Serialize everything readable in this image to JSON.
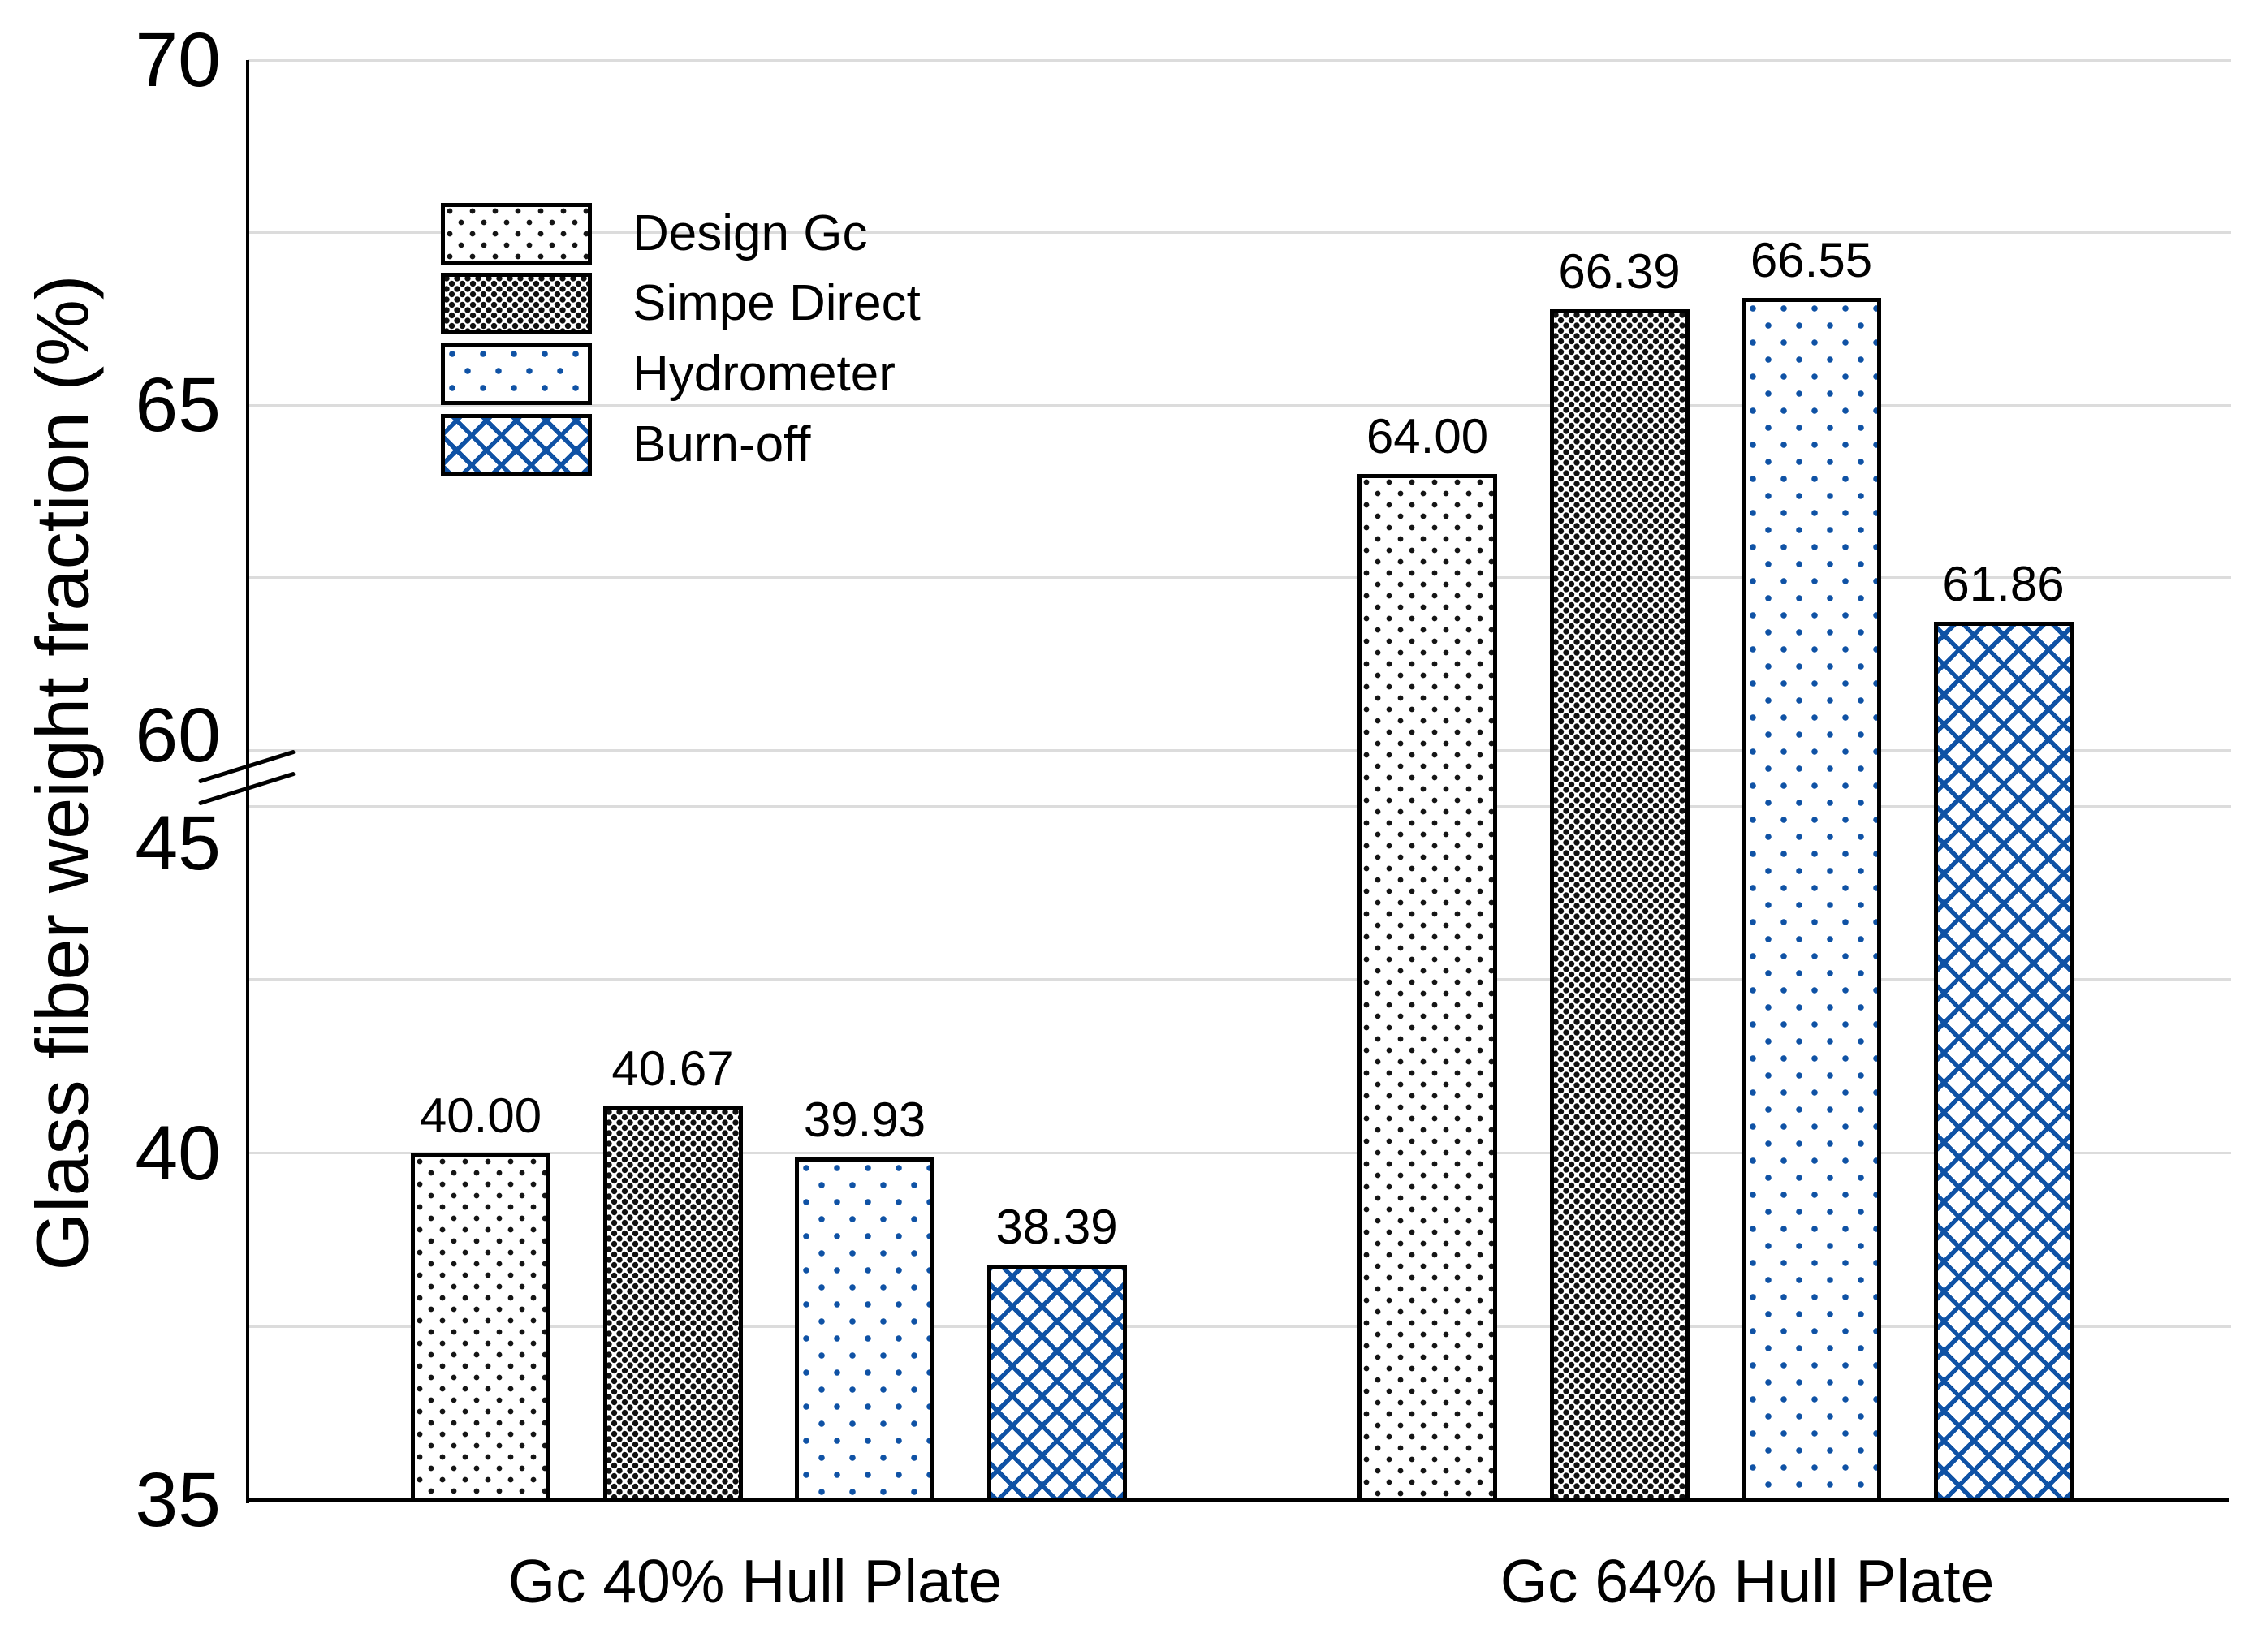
{
  "chart_data": {
    "type": "bar",
    "title": "",
    "ylabel": "Glass fiber weight fraction (%)",
    "xlabel": "",
    "categories": [
      "Gc 40% Hull Plate",
      "Gc 64% Hull Plate"
    ],
    "series": [
      {
        "name": "Design Gc",
        "pattern": "dot-sparse-black",
        "values": [
          40.0,
          64.0
        ],
        "labels": [
          "40.00",
          "64.00"
        ]
      },
      {
        "name": "Simpe Direct",
        "pattern": "dot-dense-black",
        "values": [
          40.67,
          66.39
        ],
        "labels": [
          "40.67",
          "66.39"
        ]
      },
      {
        "name": "Hydrometer",
        "pattern": "dot-sparse-blue",
        "values": [
          39.93,
          66.55
        ],
        "labels": [
          "39.93",
          "66.55"
        ]
      },
      {
        "name": "Burn-off",
        "pattern": "crosshatch-blue",
        "values": [
          38.39,
          61.86
        ],
        "labels": [
          "38.39",
          "61.86"
        ]
      }
    ],
    "axis": {
      "broken": true,
      "lower": {
        "min": 35,
        "max": 45,
        "tick_labels": [
          "35",
          "40",
          "45"
        ],
        "tick_values": [
          35,
          40,
          45
        ]
      },
      "upper": {
        "min": 60,
        "max": 70,
        "tick_labels": [
          "60",
          "65",
          "70"
        ],
        "tick_values": [
          60,
          65,
          70
        ]
      },
      "gridline_step": 2.5,
      "grid": true
    },
    "legend_position": "upper-left-inside",
    "colors": {
      "accent_blue": "#0f52a5",
      "bar_outline": "#000000",
      "gridline": "#dcdcdc",
      "axis": "#000000",
      "text": "#000000",
      "background": "#ffffff"
    }
  }
}
